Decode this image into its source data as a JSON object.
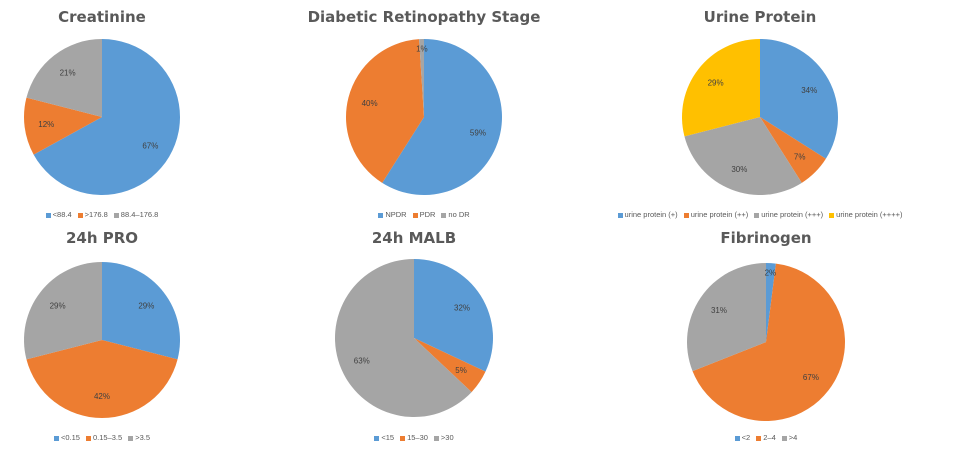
{
  "chart_data": [
    {
      "type": "pie",
      "title": "Creatinine",
      "categories": [
        "<88.4",
        ">176.8",
        "88.4–176.8"
      ],
      "values": [
        67,
        12,
        21
      ],
      "labels": [
        "67%",
        "12%",
        "21%"
      ],
      "colors": [
        "#5b9bd5",
        "#ed7d31",
        "#a5a5a5"
      ],
      "legend_position": "bottom"
    },
    {
      "type": "pie",
      "title": "Diabetic Retinopathy Stage",
      "categories": [
        "NPDR",
        "PDR",
        "no DR"
      ],
      "values": [
        59,
        40,
        1
      ],
      "labels": [
        "59%",
        "40%",
        "1%"
      ],
      "colors": [
        "#5b9bd5",
        "#ed7d31",
        "#a5a5a5"
      ],
      "legend_position": "bottom"
    },
    {
      "type": "pie",
      "title": "Urine Protein",
      "categories": [
        "urine protein (+)",
        "urine protein (++)",
        "urine protein (+++)",
        "urine protein (++++)"
      ],
      "values": [
        34,
        7,
        30,
        29
      ],
      "labels": [
        "34%",
        "7%",
        "30%",
        "29%"
      ],
      "colors": [
        "#5b9bd5",
        "#ed7d31",
        "#a5a5a5",
        "#ffc000"
      ],
      "legend_position": "bottom"
    },
    {
      "type": "pie",
      "title": "24h PRO",
      "categories": [
        "<0.15",
        "0.15–3.5",
        ">3.5"
      ],
      "values": [
        29,
        42,
        29
      ],
      "labels": [
        "29%",
        "42%",
        "29%"
      ],
      "colors": [
        "#5b9bd5",
        "#ed7d31",
        "#a5a5a5"
      ],
      "legend_position": "bottom"
    },
    {
      "type": "pie",
      "title": "24h MALB",
      "categories": [
        "<15",
        "15–30",
        ">30"
      ],
      "values": [
        32,
        5,
        63
      ],
      "labels": [
        "32%",
        "5%",
        "63%"
      ],
      "colors": [
        "#5b9bd5",
        "#ed7d31",
        "#a5a5a5"
      ],
      "legend_position": "bottom"
    },
    {
      "type": "pie",
      "title": "Fibrinogen",
      "categories": [
        "<2",
        "2–4",
        ">4"
      ],
      "values": [
        2,
        67,
        31
      ],
      "labels": [
        "2%",
        "67%",
        "31%"
      ],
      "colors": [
        "#5b9bd5",
        "#ed7d31",
        "#a5a5a5"
      ],
      "legend_position": "bottom"
    }
  ]
}
